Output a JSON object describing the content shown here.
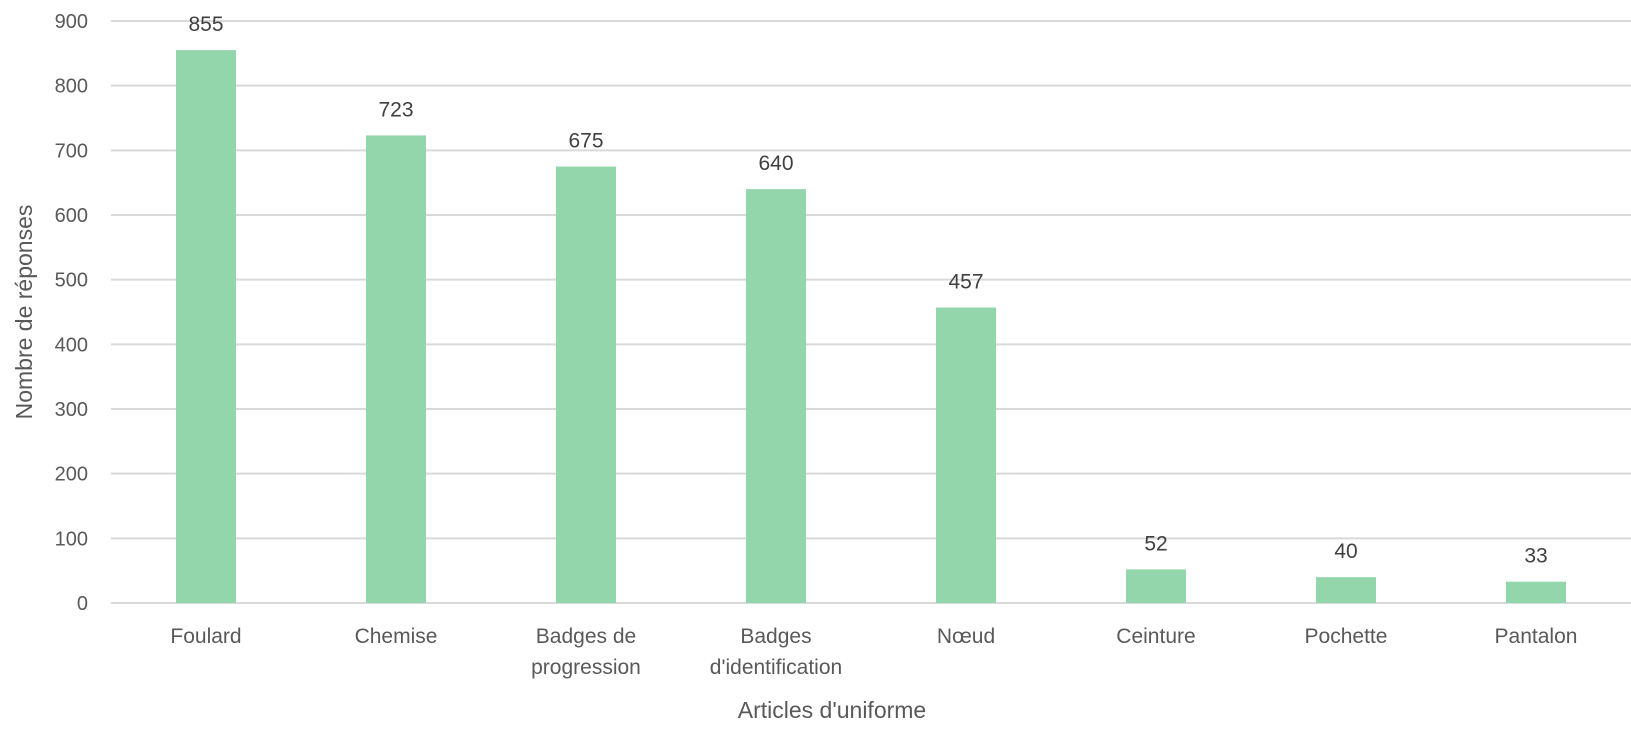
{
  "chart_data": {
    "type": "bar",
    "title": "",
    "xlabel": "Articles d'uniforme",
    "ylabel": "Nombre de réponses",
    "categories": [
      [
        "Foulard"
      ],
      [
        "Chemise"
      ],
      [
        "Badges de",
        "progression"
      ],
      [
        "Badges",
        "d'identification"
      ],
      [
        "Nœud"
      ],
      [
        "Ceinture"
      ],
      [
        "Pochette"
      ],
      [
        "Pantalon"
      ]
    ],
    "values": [
      855,
      723,
      675,
      640,
      457,
      52,
      40,
      33
    ],
    "data_labels": [
      "855",
      "723",
      "675",
      "640",
      "457",
      "52",
      "40",
      "33"
    ],
    "yticks": [
      "0",
      "100",
      "200",
      "300",
      "400",
      "500",
      "600",
      "700",
      "800",
      "900"
    ],
    "ylim": [
      0,
      900
    ],
    "grid": true,
    "legend": "none",
    "bar_color": "#93d6ac",
    "grid_color": "#d9d9d9"
  }
}
